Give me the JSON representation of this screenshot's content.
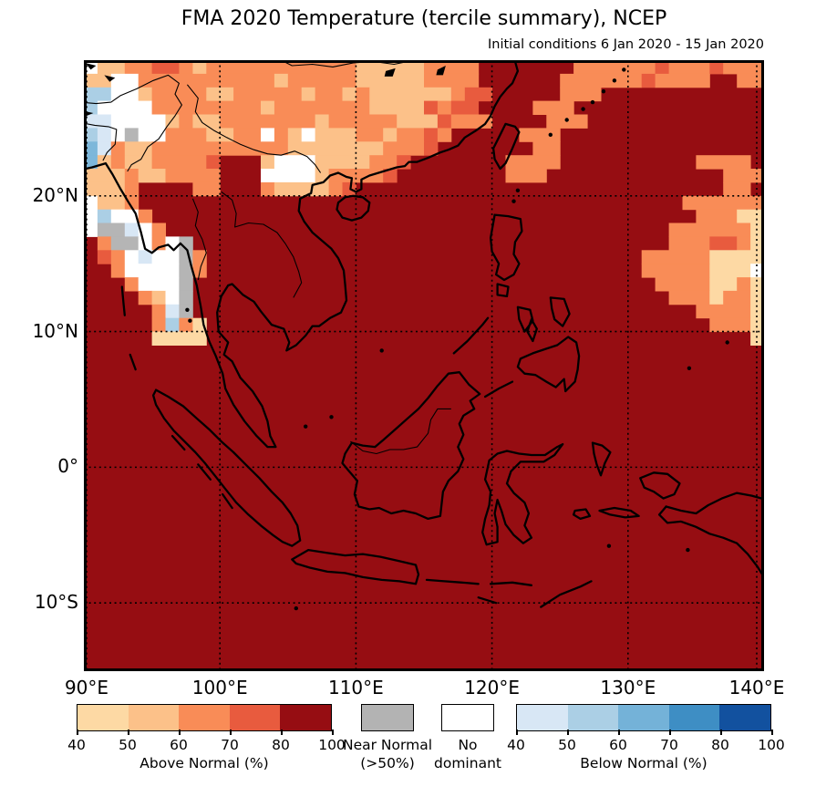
{
  "title": "FMA 2020 Temperature (tercile summary), NCEP",
  "subtitle": "Initial conditions 6 Jan 2020 - 15 Jan 2020",
  "chart_data": {
    "type": "heatmap",
    "description": "Probabilistic tercile summary forecast map of temperature for Feb-Mar-Apr 2020 over Southeast Asia. Each 1-degree cell shows the probability of the dominant tercile category.",
    "map_extent": {
      "lon_min": 90,
      "lon_max": 140,
      "lat_min": -15,
      "lat_max": 30
    },
    "x_ticks": [
      "90°E",
      "100°E",
      "110°E",
      "120°E",
      "130°E",
      "140°E"
    ],
    "x_tick_lons": [
      90,
      100,
      110,
      120,
      130,
      140
    ],
    "y_ticks": [
      "20°N",
      "10°N",
      "0°",
      "10°S"
    ],
    "y_tick_lats": [
      20,
      10,
      0,
      -10
    ],
    "grid_on": true,
    "cell_deg": 1,
    "n_cols": 50,
    "n_rows": 45,
    "origin": {
      "lon": 90,
      "lat": 30
    },
    "palette": {
      "K": "#960d12",
      "r": "#e85b3e",
      "o": "#f98c57",
      "p": "#fcc189",
      "y": "#fdd9a4",
      "w": "#ffffff",
      "g": "#b5b5b5",
      "b": "#d8e7f5",
      "B": "#abcfe5",
      "D": "#7db7da"
    },
    "palette_meaning": {
      "K": "Above Normal 80-100%",
      "r": "Above Normal 70-80%",
      "o": "Above Normal 60-70%",
      "p": "Above Normal 50-60%",
      "y": "Above Normal 40-50%",
      "w": "No dominant",
      "g": "Near Normal >50%",
      "b": "Below Normal 40-50%",
      "B": "Below Normal 50-60%",
      "D": "Below Normal 60-70%"
    },
    "fill_char": "K",
    "rows": [
      "wppoorropooooooooooopppppooooKKKKKKKoooooorooorooo",
      "ppwwoooooooooopooooopppppooooKKKKKKoooooorooooKKoo",
      "BBwwpooooppooooopoopopppppporrKKKKKoooKKKKKKKKKKKK",
      "BwwwwoooooooopooooooopppprorrKKKKoooKKKKKKKKKKKKKK",
      "bbwwwwpoppooooooopoooooppproooKKKKoooKKKKKKKKKKKKK",
      "BbwgwwoooppoowopwpppoopooroKKKKKoooKKKKKKKKKKKKKKK",
      "DboppoooooooooopppppppooorKKKKKKKooKKKKKKKKKKKKKKK",
      "DpoppoooorKKKpwwwppppoorKKKKKKKooooKKKKKKKKKKooooK",
      "pppoppooooKKKwwwwpoooorKKKKKKKKoooKKKKKKKKKKKKKooo",
      "pppoKKKKooKKKopppporKKKKKKKKKKKKKKKKKKKKKKKKKKKooK",
      "wppoKKKKKKKKKKKKKKKKKKKKKKKKKKKKKKKKKKKKKKKKoooooo",
      "wBwwoKKKKKKKKKKKKKKKKKKKKKKKKKKKKKKKKKKKKKKKKoooyy",
      "wggbwoKKKKKKKKKKKKKKKKKKKKKKKKKKKKKKKKKKKKKooooooy",
      "KoggwowgKKKKKKKKKKKKKKKKKKKKKKKKKKKKKKKKKKKooorroyy",
      "KrowbwwgoKKKKKKKKKKKKKKKKKKKKKKKKKKKKKKKKoooooyyyy",
      "KKowwwwgoKKKKKKKKKKKKKKKKKKKKKKKKKKKKKKKKoooooyyyw",
      "KKKowwwgKKKKKKKKKKKKKKKKKKKKKKKKKKKKKKKKKKooooyyoy",
      "KKKKopwgKKKKKKKKKKKKKKKKKKKKKKKKKKKKKKKKKKKoooyooy",
      "KKKKKobgKKKKKKKKKKKKKKKKKKKKKKKKKKKKKKKKKKKKKooooy",
      "KKKKKoBoyKKKKKKKKKKKKKKKKKKKKKKKKKKKKKKKKKKKKKoooy",
      "KKKKKyyyyKKKKKKKKKKKKKKKKKKKKKKKKKKKKKKKKKKKKKKKKy"
    ],
    "legend_position": "bottom"
  },
  "legend": {
    "above": {
      "label": "Above Normal (%)",
      "ticks": [
        "40",
        "50",
        "60",
        "70",
        "80",
        "100"
      ],
      "colors": [
        "#fdd9a4",
        "#fcc189",
        "#f98c57",
        "#e85b3e",
        "#960d12"
      ]
    },
    "near_normal": {
      "label_line1": "Near Normal",
      "label_line2": "(>50%)",
      "color": "#b3b3b3"
    },
    "no_dominant": {
      "label_line1": "No",
      "label_line2": "dominant",
      "color": "#ffffff"
    },
    "below": {
      "label": "Below Normal (%)",
      "ticks": [
        "40",
        "50",
        "60",
        "70",
        "80",
        "100"
      ],
      "colors": [
        "#d8e7f5",
        "#abcfe5",
        "#74b2d8",
        "#3e8ec4",
        "#12519f"
      ]
    }
  }
}
